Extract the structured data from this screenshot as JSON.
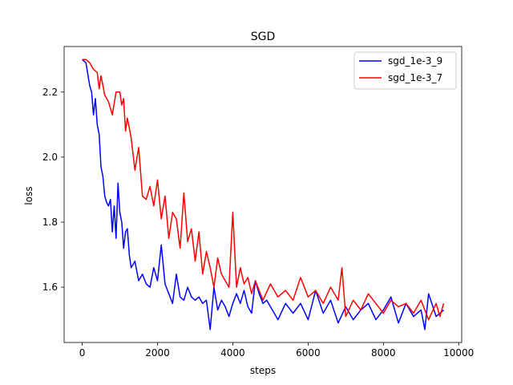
{
  "chart_data": {
    "type": "line",
    "title": "SGD",
    "xlabel": "steps",
    "ylabel": "loss",
    "xlim": [
      -480,
      10080
    ],
    "ylim": [
      1.43,
      2.34
    ],
    "xticks": [
      0,
      2000,
      4000,
      6000,
      8000,
      10000
    ],
    "xtick_labels": [
      "0",
      "2000",
      "4000",
      "6000",
      "8000",
      "10000"
    ],
    "yticks": [
      1.6,
      1.8,
      2.0,
      2.2
    ],
    "ytick_labels": [
      "1.6",
      "1.8",
      "2.0",
      "2.2"
    ],
    "grid": false,
    "legend_position": "top-right",
    "series": [
      {
        "name": "sgd_1e-3_9",
        "color": "#0000ff",
        "x": [
          0,
          100,
          200,
          250,
          300,
          350,
          400,
          450,
          500,
          550,
          600,
          650,
          700,
          750,
          800,
          850,
          900,
          950,
          1000,
          1050,
          1100,
          1150,
          1200,
          1250,
          1300,
          1400,
          1500,
          1600,
          1700,
          1800,
          1900,
          2000,
          2100,
          2200,
          2300,
          2400,
          2500,
          2600,
          2700,
          2800,
          2900,
          3000,
          3100,
          3200,
          3300,
          3400,
          3500,
          3600,
          3700,
          3800,
          3900,
          4000,
          4100,
          4200,
          4300,
          4400,
          4500,
          4600,
          4700,
          4800,
          4900,
          5000,
          5200,
          5400,
          5600,
          5800,
          6000,
          6200,
          6400,
          6600,
          6800,
          7000,
          7200,
          7400,
          7600,
          7800,
          8000,
          8200,
          8400,
          8600,
          8800,
          9000,
          9100,
          9200,
          9400,
          9600
        ],
        "values": [
          2.3,
          2.29,
          2.22,
          2.2,
          2.13,
          2.18,
          2.1,
          2.07,
          1.97,
          1.94,
          1.88,
          1.86,
          1.85,
          1.87,
          1.77,
          1.85,
          1.75,
          1.92,
          1.83,
          1.8,
          1.72,
          1.77,
          1.78,
          1.7,
          1.66,
          1.68,
          1.62,
          1.64,
          1.61,
          1.6,
          1.66,
          1.62,
          1.73,
          1.61,
          1.58,
          1.55,
          1.64,
          1.57,
          1.56,
          1.6,
          1.57,
          1.56,
          1.57,
          1.55,
          1.56,
          1.47,
          1.6,
          1.53,
          1.56,
          1.54,
          1.51,
          1.55,
          1.58,
          1.55,
          1.59,
          1.54,
          1.52,
          1.62,
          1.58,
          1.55,
          1.56,
          1.54,
          1.5,
          1.55,
          1.52,
          1.55,
          1.5,
          1.59,
          1.52,
          1.56,
          1.49,
          1.54,
          1.5,
          1.53,
          1.55,
          1.5,
          1.53,
          1.57,
          1.49,
          1.55,
          1.51,
          1.53,
          1.47,
          1.58,
          1.51,
          1.53
        ]
      },
      {
        "name": "sgd_1e-3_7",
        "color": "#ff0000",
        "x": [
          0,
          100,
          200,
          300,
          400,
          450,
          500,
          550,
          600,
          700,
          800,
          900,
          1000,
          1050,
          1100,
          1150,
          1200,
          1300,
          1400,
          1500,
          1600,
          1700,
          1800,
          1900,
          2000,
          2100,
          2200,
          2300,
          2400,
          2500,
          2600,
          2700,
          2800,
          2900,
          3000,
          3100,
          3200,
          3300,
          3400,
          3500,
          3600,
          3700,
          3800,
          3900,
          4000,
          4100,
          4200,
          4300,
          4400,
          4500,
          4600,
          4800,
          5000,
          5200,
          5400,
          5600,
          5800,
          6000,
          6200,
          6400,
          6600,
          6800,
          6900,
          7000,
          7200,
          7400,
          7600,
          7800,
          8000,
          8200,
          8400,
          8600,
          8800,
          9000,
          9200,
          9400,
          9500,
          9600
        ],
        "values": [
          2.3,
          2.3,
          2.29,
          2.27,
          2.26,
          2.21,
          2.25,
          2.22,
          2.19,
          2.17,
          2.13,
          2.2,
          2.2,
          2.16,
          2.18,
          2.08,
          2.12,
          2.06,
          1.96,
          2.03,
          1.88,
          1.87,
          1.91,
          1.85,
          1.93,
          1.81,
          1.88,
          1.75,
          1.83,
          1.81,
          1.72,
          1.89,
          1.74,
          1.78,
          1.68,
          1.77,
          1.64,
          1.71,
          1.66,
          1.6,
          1.69,
          1.64,
          1.62,
          1.6,
          1.83,
          1.6,
          1.66,
          1.61,
          1.63,
          1.58,
          1.62,
          1.56,
          1.61,
          1.57,
          1.59,
          1.56,
          1.63,
          1.57,
          1.59,
          1.55,
          1.6,
          1.56,
          1.66,
          1.51,
          1.56,
          1.53,
          1.58,
          1.55,
          1.52,
          1.56,
          1.54,
          1.55,
          1.52,
          1.56,
          1.5,
          1.55,
          1.51,
          1.55
        ]
      }
    ]
  }
}
